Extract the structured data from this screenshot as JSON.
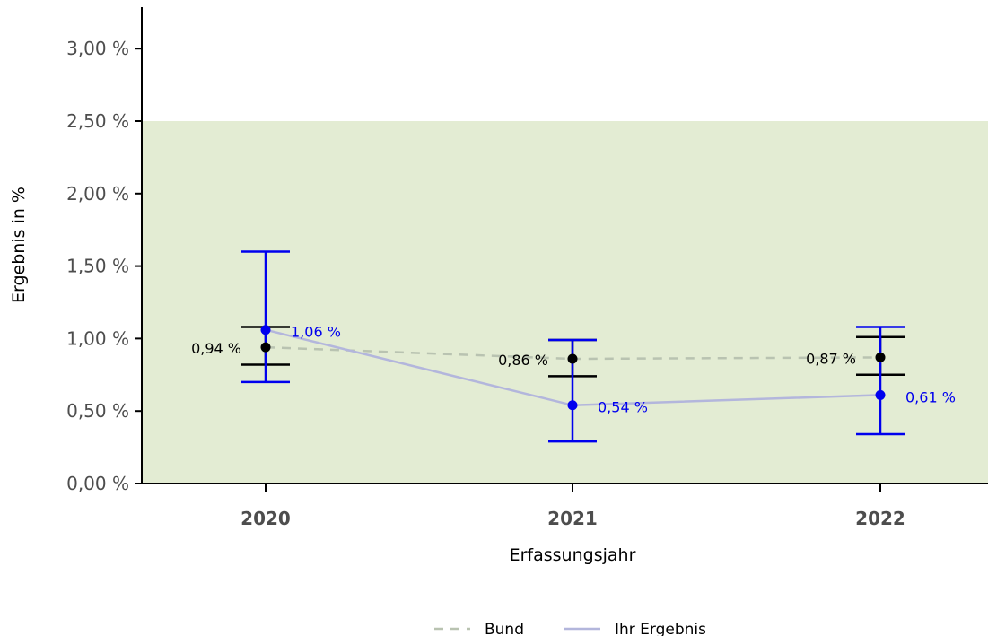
{
  "chart_data": {
    "type": "line",
    "xlabel": "Erfassungsjahr",
    "ylabel": "Ergebnis in %",
    "categories": [
      "2020",
      "2021",
      "2022"
    ],
    "ylim": [
      0,
      3.1
    ],
    "y_ticks": [
      0,
      0.5,
      1.0,
      1.5,
      2.0,
      2.5,
      3.0
    ],
    "y_tick_labels": [
      "0,00 %",
      "0,50 %",
      "1,00 %",
      "1,50 %",
      "2,00 %",
      "2,50 %",
      "3,00 %"
    ],
    "reference_band": {
      "from": 0,
      "to": 2.5,
      "color": "#e3ecd3"
    },
    "grid": false,
    "legend_position": "bottom",
    "series": [
      {
        "name": "Bund",
        "style": "dashed",
        "line_color": "#b9c3b1",
        "point_color": "#000000",
        "values": [
          0.94,
          0.86,
          0.87
        ],
        "labels": [
          "0,94 %",
          "0,86 %",
          "0,87 %"
        ],
        "ci_low": [
          0.82,
          0.74,
          0.75
        ],
        "ci_high": [
          1.08,
          0.99,
          1.01
        ]
      },
      {
        "name": "Ihr Ergebnis",
        "style": "solid",
        "line_color": "#b3b6dc",
        "point_color": "#0000ee",
        "values": [
          1.06,
          0.54,
          0.61
        ],
        "labels": [
          "1,06 %",
          "0,54 %",
          "0,61 %"
        ],
        "ci_low": [
          0.7,
          0.29,
          0.34
        ],
        "ci_high": [
          1.6,
          0.99,
          1.08
        ]
      }
    ]
  }
}
